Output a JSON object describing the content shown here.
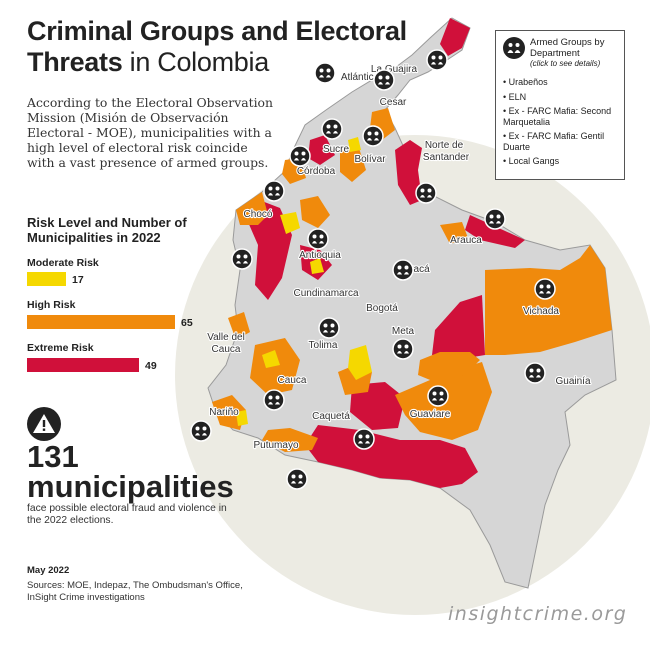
{
  "title": {
    "bold": "Criminal Groups and Electoral Threats",
    "light": "in Colombia"
  },
  "intro": "According to the Electoral Observation Mission (Misión de Observación Electoral - MOE), municipalities with a high level of electoral risk coincide with a vast presence of armed groups.",
  "risk": {
    "heading": "Risk Level and Number of Municipalities in 2022",
    "levels": [
      {
        "label": "Moderate Risk",
        "value": 17,
        "color": "#f5d800"
      },
      {
        "label": "High Risk",
        "value": 65,
        "color": "#f08a0c"
      },
      {
        "label": "Extreme Risk",
        "value": 49,
        "color": "#d0103a"
      }
    ]
  },
  "summary": {
    "count": "131",
    "unit": "municipalities",
    "description": "face possible electoral fraud and violence in the 2022 elections."
  },
  "date": "May 2022",
  "sources": "Sources: MOE, Indepaz, The Ombudsman's Office, InSight Crime investigations",
  "brand": "insightcrime.org",
  "legend": {
    "title": "Armed Groups by Department",
    "subtitle": "(click to see details)",
    "items": [
      "• Urabeños",
      "• ELN",
      "• Ex - FARC Mafia: Second Marquetalia",
      "• Ex - FARC Mafia: Gentil Duarte",
      "• Local Gangs"
    ]
  },
  "departments": [
    "La Guajira",
    "Atlántico",
    "Cesar",
    "Norte de",
    "Santander",
    "Sucre",
    "Bolívar",
    "Córdoba",
    "Chocó",
    "Antioquia",
    "Arauca",
    "Boyacá",
    "Cundinamarca",
    "Bogotá",
    "Vichada",
    "Valle del",
    "Cauca",
    "Tolima",
    "Meta",
    "Cauca",
    "Guainía",
    "Nariño",
    "Caquetá",
    "Guaviare",
    "Putumayo"
  ],
  "colors": {
    "land": "#d6d6d6",
    "outline": "#9a9a9a",
    "backdrop": "#ecebe3",
    "marker": "#222222",
    "moderate": "#f5d800",
    "high": "#f08a0c",
    "extreme": "#d0103a"
  }
}
